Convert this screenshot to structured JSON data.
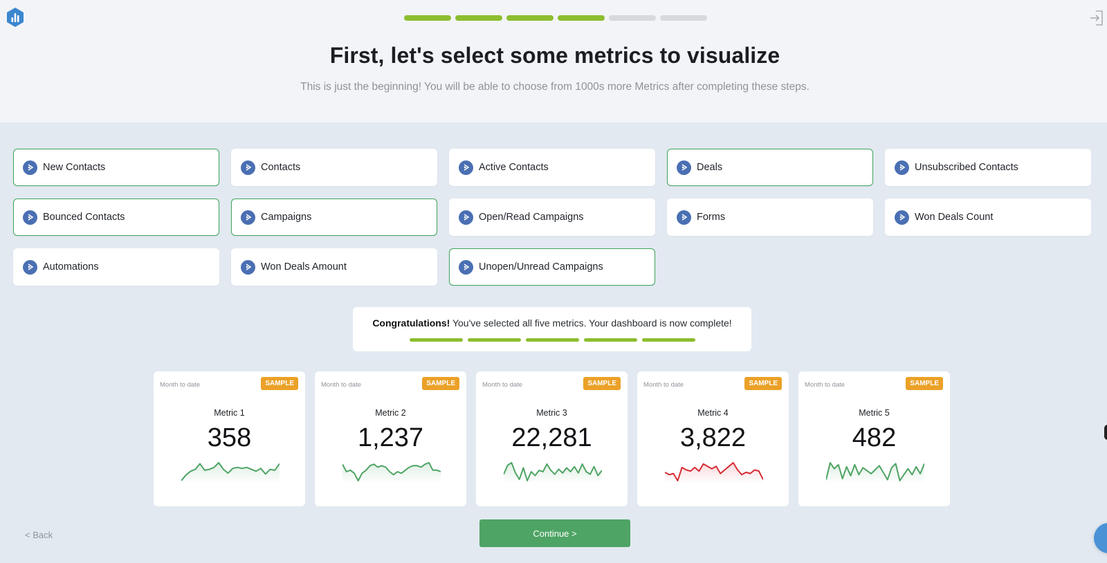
{
  "header": {
    "progress_steps": [
      {
        "done": true
      },
      {
        "done": true
      },
      {
        "done": true
      },
      {
        "done": true
      },
      {
        "done": false
      },
      {
        "done": false
      }
    ],
    "title": "First, let's select some metrics to visualize",
    "subtitle": "This is just the beginning! You will be able to choose from 1000s more Metrics after completing these steps."
  },
  "metrics": [
    {
      "label": "New Contacts",
      "selected": true
    },
    {
      "label": "Contacts",
      "selected": false
    },
    {
      "label": "Active Contacts",
      "selected": false
    },
    {
      "label": "Deals",
      "selected": true
    },
    {
      "label": "Unsubscribed Contacts",
      "selected": false
    },
    {
      "label": "Bounced Contacts",
      "selected": true
    },
    {
      "label": "Campaigns",
      "selected": true
    },
    {
      "label": "Open/Read Campaigns",
      "selected": false
    },
    {
      "label": "Forms",
      "selected": false
    },
    {
      "label": "Won Deals Count",
      "selected": false
    },
    {
      "label": "Automations",
      "selected": false
    },
    {
      "label": "Won Deals Amount",
      "selected": false
    },
    {
      "label": "Unopen/Unread Campaigns",
      "selected": true
    }
  ],
  "congrats": {
    "bold": "Congratulations!",
    "text": " You've selected all five metrics. Your dashboard is now complete!",
    "steps_completed": 5
  },
  "cards": [
    {
      "period": "Month to date",
      "badge": "SAMPLE",
      "name": "Metric 1",
      "value": "358",
      "color": "#4ea464",
      "spark": [
        2,
        8,
        12,
        14,
        20,
        13,
        14,
        16,
        21,
        14,
        10,
        15,
        16,
        15,
        16,
        14,
        12,
        15,
        9,
        14,
        13,
        20
      ]
    },
    {
      "period": "Month to date",
      "badge": "SAMPLE",
      "name": "Metric 2",
      "value": "1,237",
      "color": "#4ea464",
      "spark": [
        18,
        13,
        14,
        12,
        7,
        12,
        14,
        17,
        18,
        16,
        17,
        16,
        13,
        11,
        13,
        12,
        14,
        16,
        17,
        17,
        16,
        18,
        19,
        14,
        14,
        13
      ]
    },
    {
      "period": "Month to date",
      "badge": "SAMPLE",
      "name": "Metric 3",
      "value": "22,281",
      "color": "#4ea464",
      "spark": [
        10,
        17,
        19,
        11,
        6,
        15,
        5,
        12,
        9,
        13,
        12,
        18,
        13,
        10,
        14,
        11,
        15,
        12,
        16,
        11,
        18,
        12,
        10,
        16,
        9,
        13
      ]
    },
    {
      "period": "Month to date",
      "badge": "SAMPLE",
      "name": "Metric 4",
      "value": "3,822",
      "color": "#d62b34",
      "spark": [
        12,
        10,
        11,
        5,
        16,
        14,
        13,
        16,
        13,
        19,
        17,
        15,
        17,
        11,
        14,
        17,
        20,
        14,
        10,
        12,
        11,
        14,
        13,
        6
      ]
    },
    {
      "period": "Month to date",
      "badge": "SAMPLE",
      "name": "Metric 5",
      "value": "482",
      "color": "#4ea464",
      "spark": [
        5,
        22,
        16,
        20,
        6,
        18,
        9,
        20,
        10,
        17,
        14,
        11,
        15,
        19,
        12,
        5,
        17,
        21,
        4,
        10,
        16,
        10,
        18,
        11,
        21
      ]
    }
  ],
  "footer": {
    "back_label": "< Back",
    "continue_label": "Continue >"
  },
  "colors": {
    "accent_green": "#8dbd2f",
    "selected_border": "#3ea45a",
    "icon_blue": "#4a6fb3",
    "badge_orange": "#eba128",
    "continue_green": "#4ea464",
    "spark_red": "#d62b34"
  }
}
